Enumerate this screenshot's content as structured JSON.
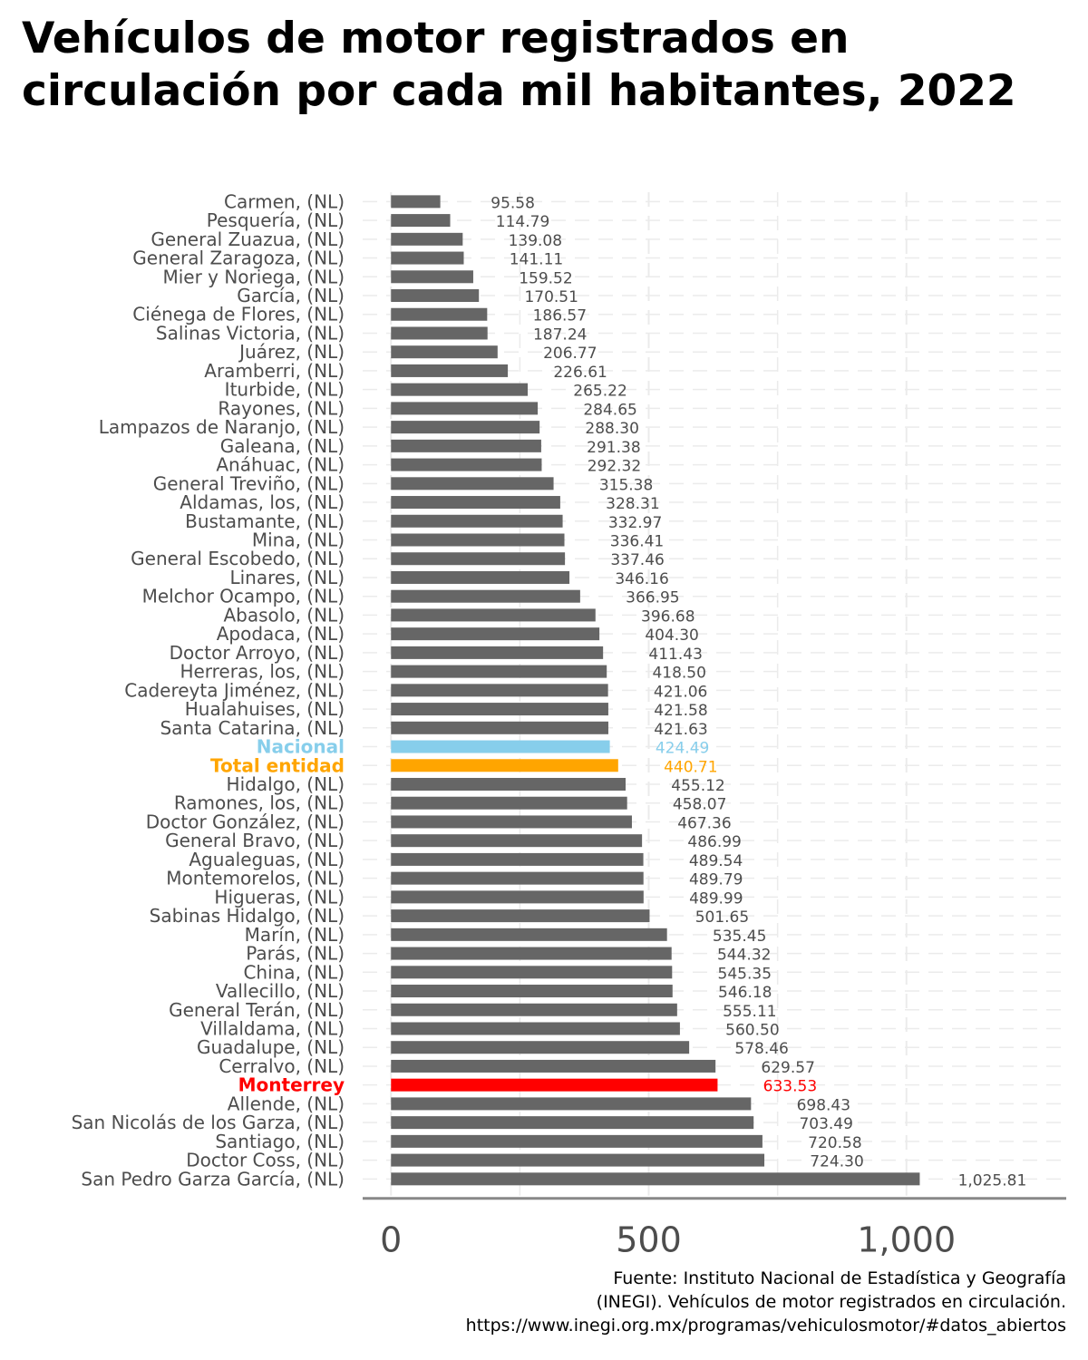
{
  "title": "Vehículos de motor registrados en circulación por cada mil habitantes, 2022",
  "source": [
    "Fuente: Instituto Nacional de Estadística y Geografía",
    "(INEGI). Vehículos de motor registrados en circulación.",
    "https://www.inegi.org.mx/programas/vehiculosmotor/#datos_abiertos"
  ],
  "chart_data": {
    "type": "bar",
    "orientation": "horizontal",
    "xlim": [
      -55,
      1310
    ],
    "x_ticks": [
      0,
      500,
      1000
    ],
    "x_tick_labels": [
      "0",
      "500",
      "1,000"
    ],
    "grid": true,
    "colors": {
      "default": "#666666",
      "Nacional": "#87ceeb",
      "Total entidad": "#ffa500",
      "Monterrey": "#ff0000"
    },
    "bars": [
      {
        "label": "Carmen, (NL)",
        "value": 95.58,
        "value_label": "95.58",
        "highlight": ""
      },
      {
        "label": "Pesquería, (NL)",
        "value": 114.79,
        "value_label": "114.79",
        "highlight": ""
      },
      {
        "label": "General Zuazua, (NL)",
        "value": 139.08,
        "value_label": "139.08",
        "highlight": ""
      },
      {
        "label": "General Zaragoza, (NL)",
        "value": 141.11,
        "value_label": "141.11",
        "highlight": ""
      },
      {
        "label": "Mier y Noriega, (NL)",
        "value": 159.52,
        "value_label": "159.52",
        "highlight": ""
      },
      {
        "label": "García, (NL)",
        "value": 170.51,
        "value_label": "170.51",
        "highlight": ""
      },
      {
        "label": "Ciénega de Flores, (NL)",
        "value": 186.57,
        "value_label": "186.57",
        "highlight": ""
      },
      {
        "label": "Salinas Victoria, (NL)",
        "value": 187.24,
        "value_label": "187.24",
        "highlight": ""
      },
      {
        "label": "Juárez, (NL)",
        "value": 206.77,
        "value_label": "206.77",
        "highlight": ""
      },
      {
        "label": "Aramberri, (NL)",
        "value": 226.61,
        "value_label": "226.61",
        "highlight": ""
      },
      {
        "label": "Iturbide, (NL)",
        "value": 265.22,
        "value_label": "265.22",
        "highlight": ""
      },
      {
        "label": "Rayones, (NL)",
        "value": 284.65,
        "value_label": "284.65",
        "highlight": ""
      },
      {
        "label": "Lampazos de Naranjo, (NL)",
        "value": 288.3,
        "value_label": "288.30",
        "highlight": ""
      },
      {
        "label": "Galeana, (NL)",
        "value": 291.38,
        "value_label": "291.38",
        "highlight": ""
      },
      {
        "label": "Anáhuac, (NL)",
        "value": 292.32,
        "value_label": "292.32",
        "highlight": ""
      },
      {
        "label": "General Treviño, (NL)",
        "value": 315.38,
        "value_label": "315.38",
        "highlight": ""
      },
      {
        "label": "Aldamas, los, (NL)",
        "value": 328.31,
        "value_label": "328.31",
        "highlight": ""
      },
      {
        "label": "Bustamante, (NL)",
        "value": 332.97,
        "value_label": "332.97",
        "highlight": ""
      },
      {
        "label": "Mina, (NL)",
        "value": 336.41,
        "value_label": "336.41",
        "highlight": ""
      },
      {
        "label": "General Escobedo, (NL)",
        "value": 337.46,
        "value_label": "337.46",
        "highlight": ""
      },
      {
        "label": "Linares, (NL)",
        "value": 346.16,
        "value_label": "346.16",
        "highlight": ""
      },
      {
        "label": "Melchor Ocampo, (NL)",
        "value": 366.95,
        "value_label": "366.95",
        "highlight": ""
      },
      {
        "label": "Abasolo, (NL)",
        "value": 396.68,
        "value_label": "396.68",
        "highlight": ""
      },
      {
        "label": "Apodaca, (NL)",
        "value": 404.3,
        "value_label": "404.30",
        "highlight": ""
      },
      {
        "label": "Doctor Arroyo, (NL)",
        "value": 411.43,
        "value_label": "411.43",
        "highlight": ""
      },
      {
        "label": "Herreras, los, (NL)",
        "value": 418.5,
        "value_label": "418.50",
        "highlight": ""
      },
      {
        "label": "Cadereyta Jiménez, (NL)",
        "value": 421.06,
        "value_label": "421.06",
        "highlight": ""
      },
      {
        "label": "Hualahuises, (NL)",
        "value": 421.58,
        "value_label": "421.58",
        "highlight": ""
      },
      {
        "label": "Santa Catarina, (NL)",
        "value": 421.63,
        "value_label": "421.63",
        "highlight": ""
      },
      {
        "label": "Nacional",
        "value": 424.49,
        "value_label": "424.49",
        "highlight": "Nacional"
      },
      {
        "label": "Total entidad",
        "value": 440.71,
        "value_label": "440.71",
        "highlight": "Total entidad"
      },
      {
        "label": "Hidalgo, (NL)",
        "value": 455.12,
        "value_label": "455.12",
        "highlight": ""
      },
      {
        "label": "Ramones, los, (NL)",
        "value": 458.07,
        "value_label": "458.07",
        "highlight": ""
      },
      {
        "label": "Doctor González, (NL)",
        "value": 467.36,
        "value_label": "467.36",
        "highlight": ""
      },
      {
        "label": "General Bravo, (NL)",
        "value": 486.99,
        "value_label": "486.99",
        "highlight": ""
      },
      {
        "label": "Agualeguas, (NL)",
        "value": 489.54,
        "value_label": "489.54",
        "highlight": ""
      },
      {
        "label": "Montemorelos, (NL)",
        "value": 489.79,
        "value_label": "489.79",
        "highlight": ""
      },
      {
        "label": "Higueras, (NL)",
        "value": 489.99,
        "value_label": "489.99",
        "highlight": ""
      },
      {
        "label": "Sabinas Hidalgo, (NL)",
        "value": 501.65,
        "value_label": "501.65",
        "highlight": ""
      },
      {
        "label": "Marín, (NL)",
        "value": 535.45,
        "value_label": "535.45",
        "highlight": ""
      },
      {
        "label": "Parás, (NL)",
        "value": 544.32,
        "value_label": "544.32",
        "highlight": ""
      },
      {
        "label": "China, (NL)",
        "value": 545.35,
        "value_label": "545.35",
        "highlight": ""
      },
      {
        "label": "Vallecillo, (NL)",
        "value": 546.18,
        "value_label": "546.18",
        "highlight": ""
      },
      {
        "label": "General Terán, (NL)",
        "value": 555.11,
        "value_label": "555.11",
        "highlight": ""
      },
      {
        "label": "Villaldama, (NL)",
        "value": 560.5,
        "value_label": "560.50",
        "highlight": ""
      },
      {
        "label": "Guadalupe, (NL)",
        "value": 578.46,
        "value_label": "578.46",
        "highlight": ""
      },
      {
        "label": "Cerralvo, (NL)",
        "value": 629.57,
        "value_label": "629.57",
        "highlight": ""
      },
      {
        "label": "Monterrey",
        "value": 633.53,
        "value_label": "633.53",
        "highlight": "Monterrey"
      },
      {
        "label": "Allende, (NL)",
        "value": 698.43,
        "value_label": "698.43",
        "highlight": ""
      },
      {
        "label": "San Nicolás de los Garza, (NL)",
        "value": 703.49,
        "value_label": "703.49",
        "highlight": ""
      },
      {
        "label": "Santiago, (NL)",
        "value": 720.58,
        "value_label": "720.58",
        "highlight": ""
      },
      {
        "label": "Doctor Coss, (NL)",
        "value": 724.3,
        "value_label": "724.30",
        "highlight": ""
      },
      {
        "label": "San Pedro Garza García, (NL)",
        "value": 1025.81,
        "value_label": "1,025.81",
        "highlight": ""
      }
    ]
  }
}
